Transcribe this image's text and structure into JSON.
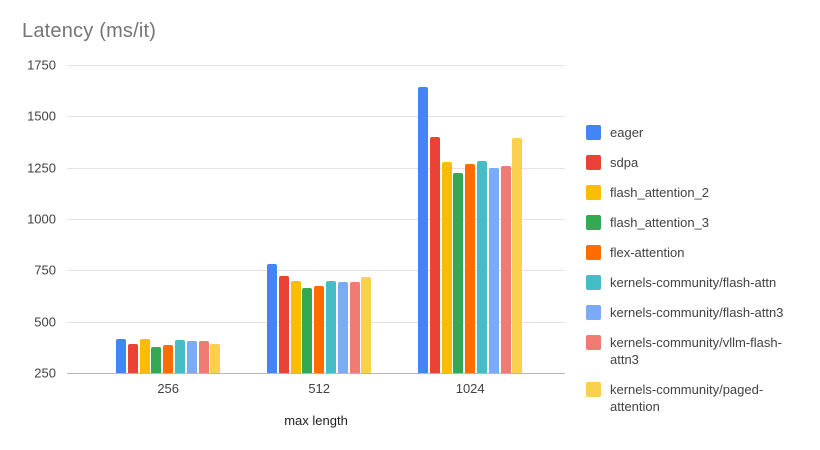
{
  "chart_data": {
    "type": "bar",
    "title": "Latency (ms/it)",
    "xlabel": "max length",
    "ylabel": "",
    "categories": [
      "256",
      "512",
      "1024"
    ],
    "y_ticks": [
      250,
      500,
      750,
      1000,
      1250,
      1500,
      1750
    ],
    "ylim": [
      250,
      1750
    ],
    "grid": true,
    "legend_position": "right",
    "series": [
      {
        "name": "eager",
        "color": "#4285F4",
        "values": [
          418,
          780,
          1645
        ]
      },
      {
        "name": "sdpa",
        "color": "#EA4335",
        "values": [
          392,
          722,
          1400
        ]
      },
      {
        "name": "flash_attention_2",
        "color": "#FBBC04",
        "values": [
          414,
          697,
          1279
        ]
      },
      {
        "name": "flash_attention_3",
        "color": "#34A853",
        "values": [
          379,
          665,
          1226
        ]
      },
      {
        "name": "flex-attention",
        "color": "#FF6D01",
        "values": [
          386,
          673,
          1270
        ]
      },
      {
        "name": "kernels-community/flash-attn",
        "color": "#46BDC6",
        "values": [
          412,
          700,
          1281
        ]
      },
      {
        "name": "kernels-community/flash-attn3",
        "color": "#7BAAF7",
        "values": [
          404,
          691,
          1246
        ]
      },
      {
        "name": "kernels-community/vllm-flash-attn3",
        "color": "#F07B72",
        "values": [
          407,
          695,
          1258
        ]
      },
      {
        "name": "kernels-community/paged-attention",
        "color": "#FCD04F",
        "values": [
          392,
          717,
          1395
        ]
      }
    ],
    "legend_labels": [
      "eager",
      "sdpa",
      "flash_attention_2",
      "flash_attention_3",
      "flex-attention",
      "kernels-community/flash-attn",
      "kernels-community/flash-attn3",
      "kernels-community/vllm-flash-\nattn3",
      "kernels-community/paged-\nattention"
    ]
  }
}
